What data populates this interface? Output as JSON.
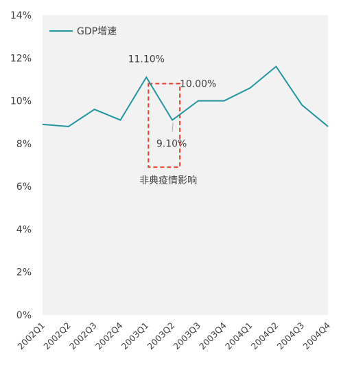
{
  "chart_data": {
    "type": "line",
    "categories": [
      "2002Q1",
      "2002Q2",
      "2002Q3",
      "2002Q4",
      "2003Q1",
      "2003Q2",
      "2003Q3",
      "2003Q4",
      "2004Q1",
      "2004Q2",
      "2004Q3",
      "2004Q4"
    ],
    "series": [
      {
        "name": "GDP增速",
        "values": [
          8.9,
          8.8,
          9.6,
          9.1,
          11.1,
          9.1,
          10.0,
          10.0,
          10.6,
          11.6,
          9.8,
          8.8
        ]
      }
    ],
    "ylim": [
      0,
      14
    ],
    "yticks": [
      0,
      2,
      4,
      6,
      8,
      10,
      12,
      14
    ],
    "ytick_labels": [
      "0%",
      "2%",
      "4%",
      "6%",
      "8%",
      "10%",
      "12%",
      "14%"
    ],
    "title": "",
    "xlabel": "",
    "ylabel": "",
    "legend_position": "top-left",
    "grid": false,
    "colors": {
      "line": "#2196a0",
      "plot_bg": "#f2f2f2",
      "highlight_box": "#e8432d"
    },
    "annotations": [
      {
        "text": "11.10%",
        "category": "2003Q1",
        "value": 11.1
      },
      {
        "text": "10.00%",
        "category": "2003Q3",
        "value": 10.0
      },
      {
        "text": "9.10%",
        "category": "2003Q2",
        "value": 9.1
      },
      {
        "text": "非典疫情影响",
        "category": "2003Q2",
        "value": 6.5
      }
    ],
    "highlight": {
      "from_category": "2003Q1",
      "to_category": "2003Q2",
      "y_range": [
        6.9,
        10.8
      ]
    }
  }
}
